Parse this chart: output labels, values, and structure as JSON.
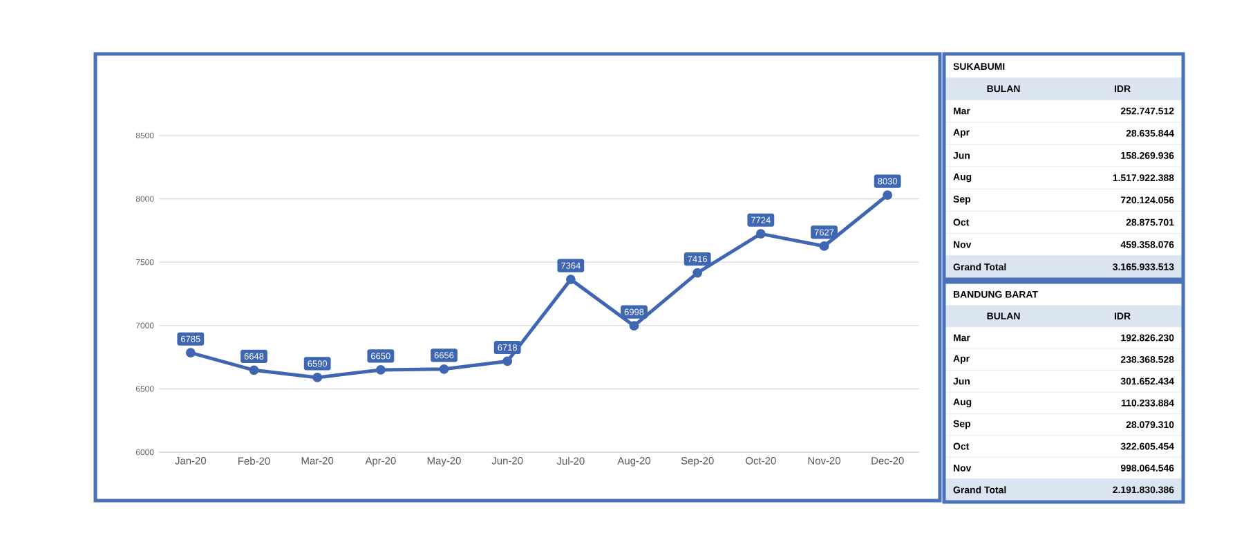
{
  "chart_data": [
    {
      "type": "line",
      "categories": [
        "Jan-20",
        "Feb-20",
        "Mar-20",
        "Apr-20",
        "May-20",
        "Jun-20",
        "Jul-20",
        "Aug-20",
        "Sep-20",
        "Oct-20",
        "Nov-20",
        "Dec-20"
      ],
      "series": [
        {
          "color": "#3f67b1",
          "values": [
            6785,
            6648,
            6590,
            6650,
            6656,
            6718,
            7364,
            6998,
            7416,
            7724,
            7627,
            8030
          ]
        }
      ],
      "ylim": [
        6000,
        8500
      ],
      "yticks": [
        6000,
        6500,
        7000,
        7500,
        8000,
        8500
      ],
      "grid": "y",
      "marker": "circle",
      "line_style": "solid",
      "data_labels": true
    },
    {
      "type": "other",
      "title": "SUKABUMI",
      "xlabel": "BULAN",
      "ylabel": "IDR",
      "categories": [
        "Mar",
        "Apr",
        "Jun",
        "Aug",
        "Sep",
        "Oct",
        "Nov",
        "Grand Total"
      ],
      "value_labels": [
        "252.747.512",
        "28.635.844",
        "158.269.936",
        "1.517.922.388",
        "720.124.056",
        "28.875.701",
        "459.358.076",
        "3.165.933.513"
      ]
    },
    {
      "type": "other",
      "title": "BANDUNG BARAT",
      "xlabel": "BULAN",
      "ylabel": "IDR",
      "categories": [
        "Mar",
        "Apr",
        "Jun",
        "Aug",
        "Sep",
        "Oct",
        "Nov",
        "Grand Total"
      ],
      "value_labels": [
        "192.826.230",
        "238.368.528",
        "301.652.434",
        "110.233.884",
        "28.079.310",
        "322.605.454",
        "998.064.546",
        "2.191.830.386"
      ]
    }
  ]
}
